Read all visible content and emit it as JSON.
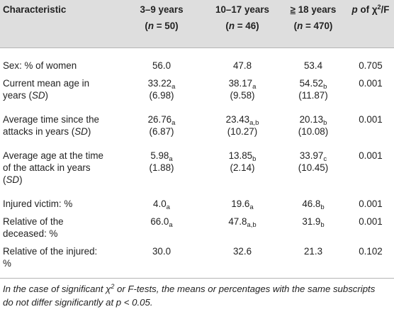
{
  "table": {
    "headers": [
      {
        "main": "Characteristic",
        "n": ""
      },
      {
        "main": "3–9 years",
        "n": "(n = 50)"
      },
      {
        "main": "10–17 years",
        "n": "(n = 46)"
      },
      {
        "main": "≥ 18 years",
        "n": "(n = 470)"
      },
      {
        "main": "p of χ2/F",
        "n": ""
      }
    ],
    "header_parts": {
      "ge_symbol": "≥",
      "ge_rest": " 18 years",
      "p_prefix": "p",
      "p_mid": " of χ",
      "p_sup": "2",
      "p_suffix": "/F",
      "n_open": "(",
      "n_var": "n",
      "n_eq_50": " = 50)",
      "n_eq_46": " = 46)",
      "n_eq_470": " = 470)"
    },
    "rows": [
      {
        "label_lines": [
          "Sex: % of women"
        ],
        "cells": [
          {
            "value": "56.0",
            "sub": "",
            "sd": ""
          },
          {
            "value": "47.8",
            "sub": "",
            "sd": ""
          },
          {
            "value": "53.4",
            "sub": "",
            "sd": ""
          }
        ],
        "p": "0.705"
      },
      {
        "label_lines": [
          "Current mean age in",
          "years (",
          "SD",
          ")"
        ],
        "cells": [
          {
            "value": "33.22",
            "sub": "a",
            "sd": "(6.98)"
          },
          {
            "value": "38.17",
            "sub": "a",
            "sd": "(9.58)"
          },
          {
            "value": "54.52",
            "sub": "b",
            "sd": "(11.87)"
          }
        ],
        "p": "0.001"
      },
      {
        "label_lines": [
          "Average time since the",
          "attacks in years (",
          "SD",
          ")"
        ],
        "cells": [
          {
            "value": "26.76",
            "sub": "a",
            "sd": "(6.87)"
          },
          {
            "value": "23.43",
            "sub": "a,b",
            "sd": "(10.27)"
          },
          {
            "value": "20.13",
            "sub": "b",
            "sd": "(10.08)"
          }
        ],
        "p": "0.001"
      },
      {
        "label_lines": [
          "Average age at the time",
          "of the attack in years",
          "(",
          "SD",
          ")"
        ],
        "cells": [
          {
            "value": "5.98",
            "sub": "a",
            "sd": "(1.88)"
          },
          {
            "value": "13.85",
            "sub": "b",
            "sd": "(2.14)"
          },
          {
            "value": "33.97",
            "sub": "c",
            "sd": "(10.45)"
          }
        ],
        "p": "0.001"
      },
      {
        "label_lines": [
          "Injured victim: %"
        ],
        "cells": [
          {
            "value": "4.0",
            "sub": "a",
            "sd": ""
          },
          {
            "value": "19.6",
            "sub": "a",
            "sd": ""
          },
          {
            "value": "46.8",
            "sub": "b",
            "sd": ""
          }
        ],
        "p": "0.001"
      },
      {
        "label_lines": [
          "Relative of the",
          "deceased: %"
        ],
        "cells": [
          {
            "value": "66.0",
            "sub": "a",
            "sd": ""
          },
          {
            "value": "47.8",
            "sub": "a,b",
            "sd": ""
          },
          {
            "value": "31.9",
            "sub": "b",
            "sd": ""
          }
        ],
        "p": "0.001"
      },
      {
        "label_lines": [
          "Relative of the injured:",
          "%"
        ],
        "cells": [
          {
            "value": "30.0",
            "sub": "",
            "sd": ""
          },
          {
            "value": "32.6",
            "sub": "",
            "sd": ""
          },
          {
            "value": "21.3",
            "sub": "",
            "sd": ""
          }
        ],
        "p": "0.102"
      }
    ]
  },
  "footnote": {
    "part1": "In the case of significant χ",
    "sup": "2",
    "part2": " or F-tests, the means or percentages with the same subscripts",
    "part3": "do not differ significantly at p < 0.05."
  }
}
